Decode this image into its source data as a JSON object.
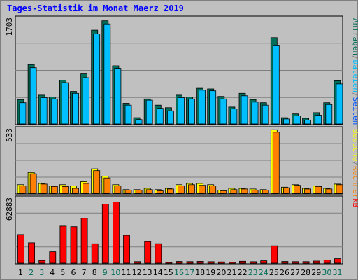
{
  "title": "Tages-Statistik im Monat Maerz 2019",
  "colors": {
    "background": "#c0c0c0",
    "panel": "#c0c0c0",
    "grid": "#7f7f7f",
    "title": "#0000ff",
    "hits": "#006e5a",
    "files": "#00bfff",
    "pages": "#0055ff",
    "visits": "#ffff00",
    "sites": "#ff8000",
    "kbytes": "#ff0000",
    "weekend": "#006e5a",
    "weekday": "#000000"
  },
  "top_panel": {
    "max_label": "1703",
    "legend": [
      "Anfragen",
      "/",
      "Dateien",
      "/",
      "Seiten"
    ]
  },
  "mid_panel": {
    "max_label": "533",
    "legend": [
      "Besuche",
      "/",
      "Rechner"
    ]
  },
  "bottom_panel": {
    "max_label": "62883",
    "legend": [
      "kB"
    ]
  },
  "chart_data": [
    {
      "type": "bar",
      "title": "Tages-Statistik im Monat Maerz 2019",
      "categories": [
        "1",
        "2",
        "3",
        "4",
        "5",
        "6",
        "7",
        "8",
        "9",
        "10",
        "11",
        "12",
        "13",
        "14",
        "15",
        "16",
        "17",
        "18",
        "19",
        "20",
        "21",
        "22",
        "23",
        "24",
        "25",
        "26",
        "27",
        "28",
        "29",
        "30",
        "31"
      ],
      "weekend_days": [
        "2",
        "3",
        "9",
        "10",
        "16",
        "17",
        "23",
        "24",
        "30",
        "31"
      ],
      "ylim": [
        0,
        1703
      ],
      "series": [
        {
          "name": "Anfragen",
          "values": [
            390,
            950,
            460,
            430,
            700,
            520,
            800,
            1500,
            1650,
            930,
            330,
            100,
            400,
            300,
            260,
            460,
            430,
            570,
            560,
            440,
            270,
            490,
            390,
            340,
            1380,
            100,
            160,
            90,
            180,
            340,
            690
          ]
        },
        {
          "name": "Dateien",
          "values": [
            340,
            900,
            420,
            400,
            660,
            490,
            740,
            1440,
            1600,
            890,
            300,
            70,
            380,
            250,
            210,
            420,
            400,
            540,
            530,
            400,
            240,
            450,
            350,
            300,
            1250,
            80,
            130,
            60,
            140,
            310,
            640
          ]
        }
      ]
    },
    {
      "type": "bar",
      "ylim": [
        0,
        533
      ],
      "series": [
        {
          "name": "Besuche",
          "values": [
            70,
            170,
            80,
            60,
            70,
            60,
            95,
            200,
            140,
            70,
            30,
            30,
            40,
            30,
            40,
            70,
            80,
            80,
            70,
            25,
            40,
            40,
            35,
            30,
            520,
            50,
            70,
            40,
            60,
            40,
            75
          ]
        },
        {
          "name": "Rechner",
          "values": [
            60,
            160,
            75,
            55,
            55,
            40,
            80,
            185,
            125,
            60,
            25,
            25,
            30,
            20,
            35,
            60,
            70,
            65,
            60,
            20,
            30,
            35,
            25,
            25,
            500,
            45,
            65,
            35,
            55,
            35,
            70
          ]
        }
      ]
    },
    {
      "type": "bar",
      "ylim": [
        0,
        62883
      ],
      "series": [
        {
          "name": "kB",
          "values": [
            27500,
            19500,
            2500,
            11000,
            35500,
            35000,
            43000,
            18500,
            56500,
            58500,
            26700,
            1500,
            20600,
            18600,
            800,
            1600,
            1500,
            1700,
            1400,
            1200,
            1100,
            1800,
            1400,
            2300,
            16600,
            1600,
            1500,
            1500,
            2000,
            2900,
            4300
          ]
        }
      ]
    }
  ]
}
